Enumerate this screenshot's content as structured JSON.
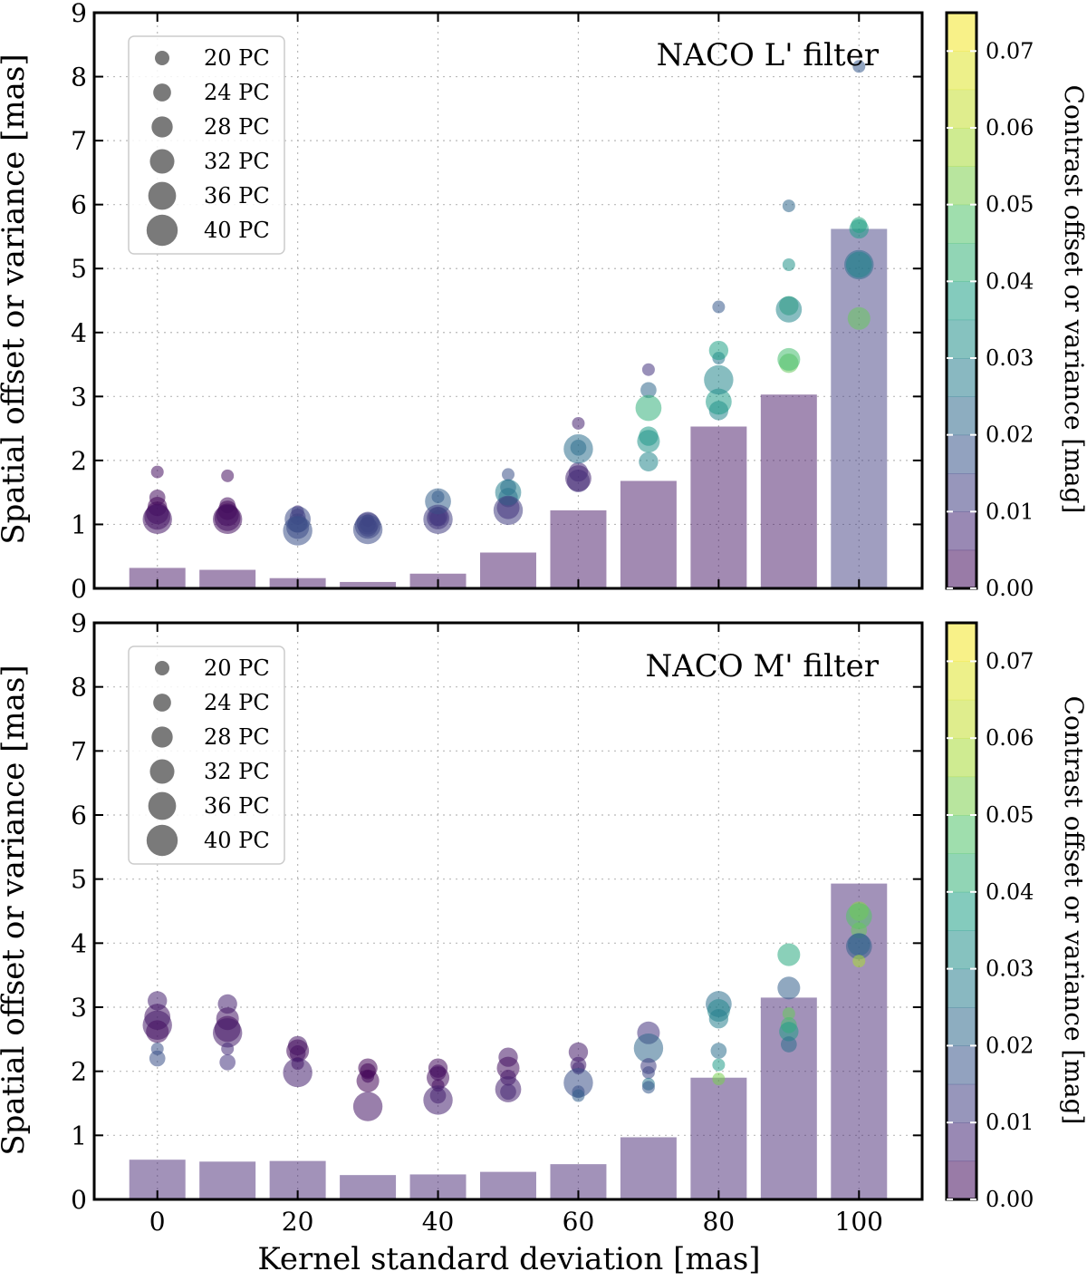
{
  "chart_data": [
    {
      "type": "bar+scatter",
      "title": "NACO L' filter",
      "xlabel": "Kernel standard deviation [mas]",
      "ylabel": "Spatial offset or variance [mas]",
      "colorbar_label": "Contrast offset or variance [mag]",
      "xlim": [
        -9,
        109
      ],
      "ylim": [
        0,
        9
      ],
      "yticks": [
        0,
        1,
        2,
        3,
        4,
        5,
        6,
        7,
        8,
        9
      ],
      "colorbar_range": [
        0,
        0.075
      ],
      "colorbar_ticks": [
        "0.00",
        "0.01",
        "0.02",
        "0.03",
        "0.04",
        "0.05",
        "0.06",
        "0.07"
      ],
      "legend": {
        "placement": "top-left",
        "entries": [
          {
            "label": "20 PC",
            "pc": 20
          },
          {
            "label": "24 PC",
            "pc": 24
          },
          {
            "label": "28 PC",
            "pc": 28
          },
          {
            "label": "32 PC",
            "pc": 32
          },
          {
            "label": "36 PC",
            "pc": 36
          },
          {
            "label": "40 PC",
            "pc": 40
          }
        ]
      },
      "bars": [
        {
          "x": 0,
          "height": 0.32,
          "contrast": 0.004
        },
        {
          "x": 10,
          "height": 0.29,
          "contrast": 0.004
        },
        {
          "x": 20,
          "height": 0.16,
          "contrast": 0.004
        },
        {
          "x": 30,
          "height": 0.1,
          "contrast": 0.004
        },
        {
          "x": 40,
          "height": 0.23,
          "contrast": 0.004
        },
        {
          "x": 50,
          "height": 0.56,
          "contrast": 0.004
        },
        {
          "x": 60,
          "height": 1.22,
          "contrast": 0.004
        },
        {
          "x": 70,
          "height": 1.68,
          "contrast": 0.004
        },
        {
          "x": 80,
          "height": 2.53,
          "contrast": 0.004
        },
        {
          "x": 90,
          "height": 3.03,
          "contrast": 0.004
        },
        {
          "x": 100,
          "height": 5.62,
          "contrast": 0.012
        }
      ],
      "points": [
        {
          "x": 0,
          "y": 1.82,
          "pc": 20,
          "c": 0.003
        },
        {
          "x": 0,
          "y": 1.42,
          "pc": 24,
          "c": 0.002
        },
        {
          "x": 0,
          "y": 1.28,
          "pc": 28,
          "c": 0.001
        },
        {
          "x": 0,
          "y": 1.18,
          "pc": 32,
          "c": 0.002
        },
        {
          "x": 0,
          "y": 1.12,
          "pc": 36,
          "c": 0.003
        },
        {
          "x": 0,
          "y": 1.08,
          "pc": 40,
          "c": 0.004
        },
        {
          "x": 10,
          "y": 1.76,
          "pc": 20,
          "c": 0.003
        },
        {
          "x": 10,
          "y": 1.3,
          "pc": 24,
          "c": 0.002
        },
        {
          "x": 10,
          "y": 1.22,
          "pc": 28,
          "c": 0.001
        },
        {
          "x": 10,
          "y": 1.15,
          "pc": 32,
          "c": 0.002
        },
        {
          "x": 10,
          "y": 1.1,
          "pc": 36,
          "c": 0.002
        },
        {
          "x": 10,
          "y": 1.08,
          "pc": 40,
          "c": 0.003
        },
        {
          "x": 20,
          "y": 1.2,
          "pc": 20,
          "c": 0.008
        },
        {
          "x": 20,
          "y": 1.12,
          "pc": 24,
          "c": 0.01
        },
        {
          "x": 20,
          "y": 1.02,
          "pc": 28,
          "c": 0.012
        },
        {
          "x": 20,
          "y": 0.95,
          "pc": 32,
          "c": 0.014
        },
        {
          "x": 20,
          "y": 1.08,
          "pc": 36,
          "c": 0.015
        },
        {
          "x": 20,
          "y": 0.9,
          "pc": 40,
          "c": 0.016
        },
        {
          "x": 30,
          "y": 1.06,
          "pc": 20,
          "c": 0.008
        },
        {
          "x": 30,
          "y": 1.0,
          "pc": 24,
          "c": 0.01
        },
        {
          "x": 30,
          "y": 0.96,
          "pc": 28,
          "c": 0.012
        },
        {
          "x": 30,
          "y": 1.02,
          "pc": 32,
          "c": 0.012
        },
        {
          "x": 30,
          "y": 0.98,
          "pc": 36,
          "c": 0.013
        },
        {
          "x": 30,
          "y": 0.92,
          "pc": 40,
          "c": 0.015
        },
        {
          "x": 40,
          "y": 1.43,
          "pc": 20,
          "c": 0.018
        },
        {
          "x": 40,
          "y": 1.1,
          "pc": 24,
          "c": 0.01
        },
        {
          "x": 40,
          "y": 1.12,
          "pc": 28,
          "c": 0.008
        },
        {
          "x": 40,
          "y": 1.1,
          "pc": 32,
          "c": 0.009
        },
        {
          "x": 40,
          "y": 1.36,
          "pc": 36,
          "c": 0.02
        },
        {
          "x": 40,
          "y": 1.08,
          "pc": 40,
          "c": 0.012
        },
        {
          "x": 50,
          "y": 1.78,
          "pc": 20,
          "c": 0.016
        },
        {
          "x": 50,
          "y": 1.58,
          "pc": 24,
          "c": 0.02
        },
        {
          "x": 50,
          "y": 1.42,
          "pc": 28,
          "c": 0.022
        },
        {
          "x": 50,
          "y": 1.26,
          "pc": 32,
          "c": 0.008
        },
        {
          "x": 50,
          "y": 1.5,
          "pc": 36,
          "c": 0.028
        },
        {
          "x": 50,
          "y": 1.22,
          "pc": 40,
          "c": 0.012
        },
        {
          "x": 60,
          "y": 2.58,
          "pc": 20,
          "c": 0.006
        },
        {
          "x": 60,
          "y": 2.2,
          "pc": 24,
          "c": 0.024
        },
        {
          "x": 60,
          "y": 1.82,
          "pc": 28,
          "c": 0.008
        },
        {
          "x": 60,
          "y": 1.68,
          "pc": 32,
          "c": 0.01
        },
        {
          "x": 60,
          "y": 1.72,
          "pc": 36,
          "c": 0.007
        },
        {
          "x": 60,
          "y": 2.18,
          "pc": 40,
          "c": 0.024
        },
        {
          "x": 70,
          "y": 3.42,
          "pc": 20,
          "c": 0.01
        },
        {
          "x": 70,
          "y": 3.1,
          "pc": 24,
          "c": 0.022
        },
        {
          "x": 70,
          "y": 2.38,
          "pc": 28,
          "c": 0.036
        },
        {
          "x": 70,
          "y": 1.98,
          "pc": 28,
          "c": 0.03
        },
        {
          "x": 70,
          "y": 2.3,
          "pc": 32,
          "c": 0.034
        },
        {
          "x": 70,
          "y": 2.82,
          "pc": 36,
          "c": 0.042
        },
        {
          "x": 80,
          "y": 4.4,
          "pc": 20,
          "c": 0.018
        },
        {
          "x": 80,
          "y": 3.6,
          "pc": 20,
          "c": 0.026
        },
        {
          "x": 80,
          "y": 3.72,
          "pc": 28,
          "c": 0.038
        },
        {
          "x": 80,
          "y": 2.78,
          "pc": 28,
          "c": 0.03
        },
        {
          "x": 80,
          "y": 2.92,
          "pc": 36,
          "c": 0.036
        },
        {
          "x": 80,
          "y": 3.26,
          "pc": 40,
          "c": 0.03
        },
        {
          "x": 90,
          "y": 5.98,
          "pc": 20,
          "c": 0.022
        },
        {
          "x": 90,
          "y": 5.06,
          "pc": 20,
          "c": 0.034
        },
        {
          "x": 90,
          "y": 4.42,
          "pc": 28,
          "c": 0.042
        },
        {
          "x": 90,
          "y": 3.52,
          "pc": 28,
          "c": 0.05
        },
        {
          "x": 90,
          "y": 3.58,
          "pc": 32,
          "c": 0.046
        },
        {
          "x": 90,
          "y": 4.36,
          "pc": 36,
          "c": 0.03
        },
        {
          "x": 100,
          "y": 8.16,
          "pc": 20,
          "c": 0.018
        },
        {
          "x": 100,
          "y": 5.68,
          "pc": 24,
          "c": 0.04
        },
        {
          "x": 100,
          "y": 5.62,
          "pc": 28,
          "c": 0.036
        },
        {
          "x": 100,
          "y": 4.22,
          "pc": 32,
          "c": 0.05
        },
        {
          "x": 100,
          "y": 5.06,
          "pc": 40,
          "c": 0.024
        },
        {
          "x": 100,
          "y": 5.06,
          "pc": 36,
          "c": 0.03
        }
      ]
    },
    {
      "type": "bar+scatter",
      "title": "NACO M' filter",
      "xlabel": "Kernel standard deviation [mas]",
      "ylabel": "Spatial offset or variance [mas]",
      "colorbar_label": "Contrast offset or variance [mag]",
      "xlim": [
        -9,
        109
      ],
      "ylim": [
        0,
        9
      ],
      "yticks": [
        0,
        1,
        2,
        3,
        4,
        5,
        6,
        7,
        8,
        9
      ],
      "xticks": [
        0,
        20,
        40,
        60,
        80,
        100
      ],
      "colorbar_range": [
        0,
        0.075
      ],
      "colorbar_ticks": [
        "0.00",
        "0.01",
        "0.02",
        "0.03",
        "0.04",
        "0.05",
        "0.06",
        "0.07"
      ],
      "legend": {
        "placement": "top-left",
        "entries": [
          {
            "label": "20 PC",
            "pc": 20
          },
          {
            "label": "24 PC",
            "pc": 24
          },
          {
            "label": "28 PC",
            "pc": 28
          },
          {
            "label": "32 PC",
            "pc": 32
          },
          {
            "label": "36 PC",
            "pc": 36
          },
          {
            "label": "40 PC",
            "pc": 40
          }
        ]
      },
      "bars": [
        {
          "x": 0,
          "height": 0.62,
          "contrast": 0.007
        },
        {
          "x": 10,
          "height": 0.59,
          "contrast": 0.007
        },
        {
          "x": 20,
          "height": 0.6,
          "contrast": 0.007
        },
        {
          "x": 30,
          "height": 0.38,
          "contrast": 0.007
        },
        {
          "x": 40,
          "height": 0.39,
          "contrast": 0.007
        },
        {
          "x": 50,
          "height": 0.43,
          "contrast": 0.007
        },
        {
          "x": 60,
          "height": 0.55,
          "contrast": 0.007
        },
        {
          "x": 70,
          "height": 0.97,
          "contrast": 0.007
        },
        {
          "x": 80,
          "height": 1.9,
          "contrast": 0.007
        },
        {
          "x": 90,
          "height": 3.15,
          "contrast": 0.007
        },
        {
          "x": 100,
          "height": 4.93,
          "contrast": 0.007
        }
      ],
      "points": [
        {
          "x": 0,
          "y": 3.1,
          "pc": 28,
          "c": 0.006
        },
        {
          "x": 0,
          "y": 2.85,
          "pc": 36,
          "c": 0.004
        },
        {
          "x": 0,
          "y": 2.72,
          "pc": 40,
          "c": 0.005
        },
        {
          "x": 0,
          "y": 2.62,
          "pc": 32,
          "c": 0.003
        },
        {
          "x": 0,
          "y": 2.35,
          "pc": 20,
          "c": 0.016
        },
        {
          "x": 0,
          "y": 2.2,
          "pc": 24,
          "c": 0.016
        },
        {
          "x": 10,
          "y": 3.05,
          "pc": 28,
          "c": 0.006
        },
        {
          "x": 10,
          "y": 2.82,
          "pc": 32,
          "c": 0.004
        },
        {
          "x": 10,
          "y": 2.66,
          "pc": 36,
          "c": 0.003
        },
        {
          "x": 10,
          "y": 2.6,
          "pc": 40,
          "c": 0.005
        },
        {
          "x": 10,
          "y": 2.35,
          "pc": 20,
          "c": 0.008
        },
        {
          "x": 10,
          "y": 2.14,
          "pc": 24,
          "c": 0.01
        },
        {
          "x": 20,
          "y": 2.4,
          "pc": 28,
          "c": 0.004
        },
        {
          "x": 20,
          "y": 2.32,
          "pc": 32,
          "c": 0.002
        },
        {
          "x": 20,
          "y": 2.28,
          "pc": 24,
          "c": 0.003
        },
        {
          "x": 20,
          "y": 2.12,
          "pc": 20,
          "c": 0.003
        },
        {
          "x": 20,
          "y": 1.98,
          "pc": 40,
          "c": 0.006
        },
        {
          "x": 30,
          "y": 2.05,
          "pc": 28,
          "c": 0.001
        },
        {
          "x": 30,
          "y": 2.0,
          "pc": 24,
          "c": 0.001
        },
        {
          "x": 30,
          "y": 1.92,
          "pc": 20,
          "c": 0.002
        },
        {
          "x": 30,
          "y": 1.85,
          "pc": 32,
          "c": 0.001
        },
        {
          "x": 30,
          "y": 1.45,
          "pc": 40,
          "c": 0.004
        },
        {
          "x": 40,
          "y": 2.05,
          "pc": 28,
          "c": 0.002
        },
        {
          "x": 40,
          "y": 1.98,
          "pc": 24,
          "c": 0.002
        },
        {
          "x": 40,
          "y": 1.9,
          "pc": 32,
          "c": 0.003
        },
        {
          "x": 40,
          "y": 1.78,
          "pc": 20,
          "c": 0.002
        },
        {
          "x": 40,
          "y": 1.62,
          "pc": 24,
          "c": 0.006
        },
        {
          "x": 40,
          "y": 1.55,
          "pc": 40,
          "c": 0.006
        },
        {
          "x": 50,
          "y": 2.22,
          "pc": 28,
          "c": 0.004
        },
        {
          "x": 50,
          "y": 2.05,
          "pc": 32,
          "c": 0.003
        },
        {
          "x": 50,
          "y": 1.9,
          "pc": 24,
          "c": 0.004
        },
        {
          "x": 50,
          "y": 1.72,
          "pc": 36,
          "c": 0.006
        },
        {
          "x": 50,
          "y": 1.68,
          "pc": 24,
          "c": 0.007
        },
        {
          "x": 60,
          "y": 2.3,
          "pc": 28,
          "c": 0.005
        },
        {
          "x": 60,
          "y": 2.1,
          "pc": 24,
          "c": 0.006
        },
        {
          "x": 60,
          "y": 2.05,
          "pc": 20,
          "c": 0.007
        },
        {
          "x": 60,
          "y": 1.82,
          "pc": 40,
          "c": 0.016
        },
        {
          "x": 60,
          "y": 1.68,
          "pc": 20,
          "c": 0.016
        },
        {
          "x": 60,
          "y": 1.62,
          "pc": 20,
          "c": 0.02
        },
        {
          "x": 70,
          "y": 2.6,
          "pc": 32,
          "c": 0.01
        },
        {
          "x": 70,
          "y": 2.36,
          "pc": 40,
          "c": 0.022
        },
        {
          "x": 70,
          "y": 2.08,
          "pc": 24,
          "c": 0.012
        },
        {
          "x": 70,
          "y": 1.98,
          "pc": 20,
          "c": 0.014
        },
        {
          "x": 70,
          "y": 1.8,
          "pc": 20,
          "c": 0.026
        },
        {
          "x": 70,
          "y": 1.75,
          "pc": 20,
          "c": 0.018
        },
        {
          "x": 80,
          "y": 3.05,
          "pc": 36,
          "c": 0.024
        },
        {
          "x": 80,
          "y": 2.95,
          "pc": 32,
          "c": 0.03
        },
        {
          "x": 80,
          "y": 2.82,
          "pc": 28,
          "c": 0.028
        },
        {
          "x": 80,
          "y": 2.32,
          "pc": 24,
          "c": 0.024
        },
        {
          "x": 80,
          "y": 2.1,
          "pc": 20,
          "c": 0.036
        },
        {
          "x": 80,
          "y": 1.88,
          "pc": 20,
          "c": 0.052
        },
        {
          "x": 90,
          "y": 3.82,
          "pc": 32,
          "c": 0.04
        },
        {
          "x": 90,
          "y": 3.3,
          "pc": 32,
          "c": 0.02
        },
        {
          "x": 90,
          "y": 2.9,
          "pc": 20,
          "c": 0.05
        },
        {
          "x": 90,
          "y": 2.72,
          "pc": 24,
          "c": 0.046
        },
        {
          "x": 90,
          "y": 2.62,
          "pc": 28,
          "c": 0.036
        },
        {
          "x": 90,
          "y": 2.42,
          "pc": 24,
          "c": 0.024
        },
        {
          "x": 100,
          "y": 4.5,
          "pc": 28,
          "c": 0.054
        },
        {
          "x": 100,
          "y": 4.42,
          "pc": 36,
          "c": 0.048
        },
        {
          "x": 100,
          "y": 4.2,
          "pc": 24,
          "c": 0.05
        },
        {
          "x": 100,
          "y": 3.98,
          "pc": 32,
          "c": 0.024
        },
        {
          "x": 100,
          "y": 3.95,
          "pc": 36,
          "c": 0.02
        },
        {
          "x": 100,
          "y": 3.72,
          "pc": 20,
          "c": 0.058
        }
      ]
    }
  ]
}
